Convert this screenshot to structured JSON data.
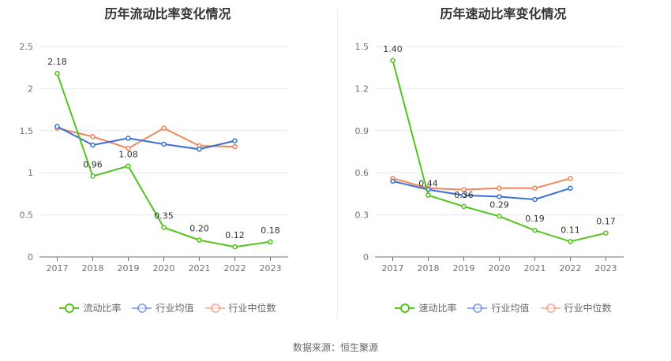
{
  "source_text": "数据来源：恒生聚源",
  "chart_data": [
    {
      "type": "line",
      "title": "历年流动比率变化情况",
      "categories": [
        "2017",
        "2018",
        "2019",
        "2020",
        "2021",
        "2022",
        "2023"
      ],
      "ylim": [
        0,
        2.5
      ],
      "yticks": [
        "0",
        "0.5",
        "1",
        "1.5",
        "2",
        "2.5"
      ],
      "ytick_values": [
        0,
        0.5,
        1,
        1.5,
        2,
        2.5
      ],
      "grid": true,
      "legend_position": "bottom",
      "series": [
        {
          "name": "流动比率",
          "color": "#52c41a",
          "values": [
            2.18,
            0.96,
            1.08,
            0.35,
            0.2,
            0.12,
            0.18
          ],
          "labels": [
            "2.18",
            "0.96",
            "1.08",
            "0.35",
            "0.20",
            "0.12",
            "0.18"
          ]
        },
        {
          "name": "行业均值",
          "color": "#3a6fd8",
          "values": [
            1.55,
            1.33,
            1.41,
            1.34,
            1.28,
            1.38,
            null
          ]
        },
        {
          "name": "行业中位数",
          "color": "#f0855a",
          "values": [
            1.53,
            1.43,
            1.29,
            1.53,
            1.32,
            1.31,
            null
          ]
        }
      ]
    },
    {
      "type": "line",
      "title": "历年速动比率变化情况",
      "categories": [
        "2017",
        "2018",
        "2019",
        "2020",
        "2021",
        "2022",
        "2023"
      ],
      "ylim": [
        0,
        1.5
      ],
      "yticks": [
        "0",
        "0.3",
        "0.6",
        "0.9",
        "1.2",
        "1.5"
      ],
      "ytick_values": [
        0,
        0.3,
        0.6,
        0.9,
        1.2,
        1.5
      ],
      "grid": true,
      "legend_position": "bottom",
      "series": [
        {
          "name": "速动比率",
          "color": "#52c41a",
          "values": [
            1.4,
            0.44,
            0.36,
            0.29,
            0.19,
            0.11,
            0.17
          ],
          "labels": [
            "1.40",
            "0.44",
            "0.36",
            "0.29",
            "0.19",
            "0.11",
            "0.17"
          ]
        },
        {
          "name": "行业均值",
          "color": "#3a6fd8",
          "values": [
            0.54,
            0.48,
            0.44,
            0.43,
            0.41,
            0.49,
            null
          ]
        },
        {
          "name": "行业中位数",
          "color": "#f0855a",
          "values": [
            0.56,
            0.49,
            0.48,
            0.49,
            0.49,
            0.56,
            null
          ]
        }
      ]
    }
  ]
}
